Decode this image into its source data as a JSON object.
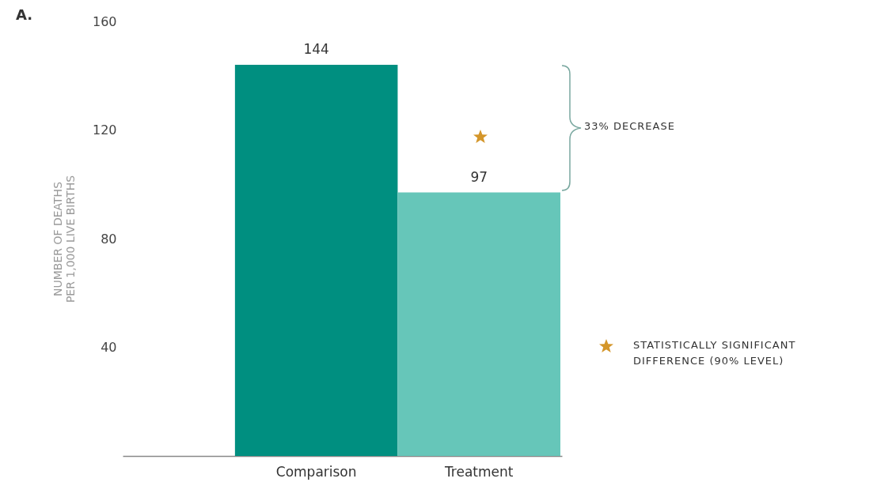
{
  "chart_data": {
    "type": "bar",
    "title": "A.",
    "ylabel": "NUMBER OF DEATHS\nPER 1,000 LIVE BIRTHS",
    "categories": [
      "Comparison",
      "Treatment"
    ],
    "values": [
      144,
      97
    ],
    "colors": [
      "#008f80",
      "#66c6b9"
    ],
    "ylim": [
      0,
      160
    ],
    "yticks": [
      40,
      80,
      120,
      160
    ],
    "data_labels": true,
    "annotations": [
      "33% DECREASE",
      "STATISTICALLY SIGNIFICANT DIFFERENCE (90% LEVEL)"
    ]
  }
}
